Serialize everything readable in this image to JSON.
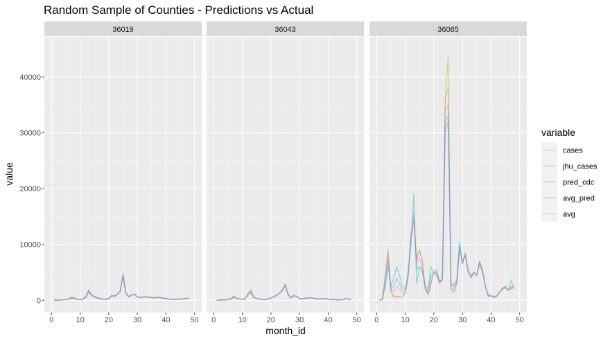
{
  "chart_data": {
    "type": "line",
    "title": "Random Sample of Counties - Predictions vs Actual",
    "xlabel": "month_id",
    "ylabel": "value",
    "xlim": [
      0,
      50
    ],
    "ylim": [
      0,
      45000
    ],
    "x_ticks": [
      0,
      10,
      20,
      30,
      40,
      50
    ],
    "y_ticks": [
      0,
      10000,
      20000,
      30000,
      40000
    ],
    "x_tick_labels": [
      "0",
      "10",
      "20",
      "30",
      "40",
      "50"
    ],
    "y_tick_labels": [
      "0",
      "10000",
      "20000",
      "30000",
      "40000"
    ],
    "grid": true,
    "legend_title": "variable",
    "legend_position": "right",
    "series_styles": [
      {
        "name": "cases",
        "color": "#F8766D"
      },
      {
        "name": "jhu_cases",
        "color": "#A3A500"
      },
      {
        "name": "pred_cdc",
        "color": "#00BF7D"
      },
      {
        "name": "avg_pred",
        "color": "#00B0F6"
      },
      {
        "name": "avg",
        "color": "#E76BF3"
      }
    ],
    "x": [
      1,
      2,
      3,
      4,
      5,
      6,
      7,
      8,
      9,
      10,
      11,
      12,
      13,
      14,
      15,
      16,
      17,
      18,
      19,
      20,
      21,
      22,
      23,
      24,
      25,
      26,
      27,
      28,
      29,
      30,
      31,
      32,
      33,
      34,
      35,
      36,
      37,
      38,
      39,
      40,
      41,
      42,
      43,
      44,
      45,
      46,
      47,
      48
    ],
    "facets": [
      {
        "label": "36019",
        "series": [
          {
            "name": "cases",
            "values": [
              0,
              20,
              50,
              80,
              120,
              200,
              400,
              300,
              150,
              120,
              200,
              500,
              1500,
              900,
              600,
              400,
              250,
              200,
              150,
              300,
              800,
              700,
              1000,
              1600,
              4600,
              1200,
              600,
              900,
              1100,
              600,
              500,
              550,
              600,
              550,
              450,
              400,
              500,
              450,
              350,
              300,
              200,
              150,
              100,
              150,
              250,
              200,
              300,
              350
            ]
          },
          {
            "name": "jhu_cases",
            "values": [
              0,
              20,
              50,
              80,
              120,
              200,
              400,
              300,
              150,
              120,
              200,
              500,
              1500,
              900,
              600,
              400,
              250,
              200,
              150,
              300,
              800,
              700,
              1000,
              1600,
              4900,
              1200,
              600,
              900,
              1100,
              600,
              500,
              550,
              600,
              550,
              450,
              400,
              500,
              450,
              350,
              300,
              200,
              150,
              100,
              150,
              250,
              200,
              300,
              350
            ]
          },
          {
            "name": "pred_cdc",
            "values": [
              0,
              30,
              60,
              90,
              130,
              250,
              600,
              400,
              200,
              150,
              250,
              700,
              1900,
              1000,
              700,
              500,
              300,
              250,
              200,
              350,
              900,
              800,
              1100,
              1700,
              4200,
              1300,
              700,
              950,
              1100,
              650,
              550,
              600,
              650,
              600,
              500,
              450,
              550,
              500,
              400,
              350,
              250,
              200,
              150,
              200,
              300,
              250,
              350,
              400
            ]
          },
          {
            "name": "avg_pred",
            "values": [
              0,
              25,
              55,
              85,
              125,
              230,
              500,
              380,
              180,
              140,
              230,
              600,
              1700,
              950,
              650,
              450,
              280,
              230,
              180,
              330,
              850,
              750,
              1050,
              1650,
              4400,
              1250,
              650,
              920,
              1100,
              620,
              520,
              580,
              620,
              580,
              480,
              420,
              520,
              480,
              380,
              320,
              220,
              180,
              130,
              180,
              280,
              230,
              330,
              380
            ]
          },
          {
            "name": "avg",
            "values": [
              0,
              22,
              52,
              82,
              122,
              210,
              450,
              340,
              160,
              130,
              210,
              550,
              1600,
              920,
              620,
              420,
              260,
              210,
              160,
              310,
              820,
              720,
              1020,
              1620,
              4500,
              1220,
              620,
              910,
              1100,
              610,
              510,
              560,
              610,
              560,
              460,
              410,
              510,
              460,
              360,
              310,
              210,
              160,
              110,
              160,
              260,
              210,
              310,
              360
            ]
          }
        ]
      },
      {
        "label": "36043",
        "series": [
          {
            "name": "cases",
            "values": [
              0,
              20,
              40,
              70,
              100,
              200,
              500,
              300,
              200,
              150,
              300,
              1200,
              1800,
              500,
              300,
              200,
              150,
              100,
              200,
              400,
              600,
              900,
              1300,
              1800,
              2900,
              1000,
              400,
              800,
              700,
              300,
              250,
              350,
              400,
              450,
              350,
              250,
              200,
              300,
              250,
              200,
              150,
              100,
              80,
              50,
              100,
              300,
              200,
              150
            ]
          },
          {
            "name": "jhu_cases",
            "values": [
              0,
              20,
              40,
              70,
              100,
              200,
              500,
              300,
              200,
              150,
              300,
              1200,
              2000,
              500,
              300,
              200,
              150,
              100,
              200,
              400,
              600,
              900,
              1300,
              1800,
              3000,
              1000,
              400,
              800,
              700,
              300,
              250,
              350,
              400,
              450,
              350,
              250,
              200,
              300,
              250,
              200,
              150,
              100,
              80,
              50,
              100,
              300,
              200,
              150
            ]
          },
          {
            "name": "pred_cdc",
            "values": [
              0,
              30,
              60,
              100,
              150,
              300,
              800,
              400,
              250,
              200,
              350,
              900,
              1300,
              600,
              350,
              250,
              200,
              150,
              250,
              450,
              650,
              950,
              1300,
              1700,
              2600,
              1100,
              450,
              850,
              750,
              350,
              300,
              380,
              420,
              480,
              380,
              280,
              230,
              320,
              280,
              230,
              180,
              130,
              100,
              80,
              130,
              320,
              230,
              180
            ]
          },
          {
            "name": "avg_pred",
            "values": [
              0,
              25,
              50,
              85,
              125,
              250,
              650,
              350,
              220,
              170,
              320,
              1000,
              1500,
              550,
              320,
              220,
              170,
              120,
              220,
              420,
              620,
              920,
              1300,
              1750,
              2750,
              1050,
              420,
              820,
              720,
              320,
              270,
              360,
              410,
              460,
              360,
              260,
              210,
              310,
              260,
              210,
              160,
              110,
              90,
              60,
              110,
              310,
              210,
              160
            ]
          },
          {
            "name": "avg",
            "values": [
              0,
              22,
              45,
              78,
              112,
              225,
              570,
              325,
              210,
              160,
              310,
              1100,
              1650,
              520,
              310,
              210,
              160,
              110,
              210,
              410,
              610,
              910,
              1300,
              1780,
              2850,
              1020,
              410,
              810,
              710,
              310,
              260,
              355,
              405,
              455,
              355,
              255,
              205,
              305,
              255,
              205,
              155,
              105,
              85,
              55,
              105,
              305,
              205,
              155
            ]
          }
        ]
      },
      {
        "label": "36085",
        "series": [
          {
            "name": "cases",
            "values": [
              0,
              200,
              4000,
              8500,
              1500,
              600,
              700,
              500,
              600,
              1200,
              4000,
              11000,
              14000,
              7000,
              9000,
              7000,
              2000,
              1000,
              3000,
              5000,
              4500,
              3000,
              4000,
              36000,
              38000,
              2000,
              1500,
              3000,
              9000,
              7000,
              8000,
              5500,
              4000,
              5000,
              4500,
              7000,
              5500,
              2500,
              700,
              800,
              500,
              700,
              1500,
              2200,
              2500,
              1800,
              2000,
              2500
            ]
          },
          {
            "name": "jhu_cases",
            "values": [
              0,
              200,
              4500,
              9200,
              1600,
              650,
              750,
              550,
              650,
              1300,
              4500,
              12000,
              14500,
              7500,
              9000,
              7000,
              2000,
              1000,
              3000,
              5000,
              4500,
              3000,
              4000,
              36000,
              43500,
              2000,
              1500,
              3000,
              9000,
              7000,
              8000,
              5500,
              4000,
              5000,
              4500,
              7000,
              5500,
              2500,
              700,
              800,
              500,
              700,
              1500,
              2200,
              2500,
              1800,
              2000,
              2500
            ]
          },
          {
            "name": "pred_cdc",
            "values": [
              0,
              100,
              2500,
              6000,
              2500,
              4000,
              6000,
              4500,
              2500,
              2000,
              5000,
              10000,
              19000,
              3000,
              6000,
              5000,
              2500,
              2000,
              6000,
              5000,
              5500,
              3500,
              3500,
              30000,
              32000,
              3000,
              2500,
              3500,
              10000,
              6500,
              8500,
              5000,
              4500,
              5000,
              4500,
              6500,
              5000,
              2500,
              1000,
              800,
              700,
              800,
              1500,
              2000,
              2200,
              1800,
              2500,
              2000
            ]
          },
          {
            "name": "avg_pred",
            "values": [
              0,
              150,
              3000,
              7000,
              2000,
              2500,
              4000,
              3000,
              1800,
              1500,
              4500,
              11000,
              16000,
              5500,
              6000,
              5500,
              2200,
              1500,
              4500,
              5000,
              5000,
              3200,
              3800,
              32000,
              33000,
              2500,
              3000,
              3500,
              10500,
              6500,
              8200,
              5200,
              4200,
              5000,
              4500,
              6800,
              5200,
              2500,
              900,
              800,
              600,
              750,
              1500,
              2100,
              2300,
              1800,
              3600,
              2200
            ]
          },
          {
            "name": "avg",
            "values": [
              0,
              180,
              3500,
              7800,
              1800,
              1500,
              2500,
              2000,
              1200,
              1400,
              4300,
              11500,
              15000,
              6500,
              7500,
              6000,
              2100,
              1200,
              3800,
              5000,
              4800,
              3100,
              3900,
              34000,
              35000,
              2200,
              2000,
              3200,
              9500,
              6800,
              8100,
              5300,
              4100,
              5000,
              4500,
              6900,
              5300,
              2500,
              800,
              800,
              550,
              720,
              1500,
              2150,
              2400,
              1800,
              2300,
              2400
            ]
          }
        ]
      }
    ]
  }
}
